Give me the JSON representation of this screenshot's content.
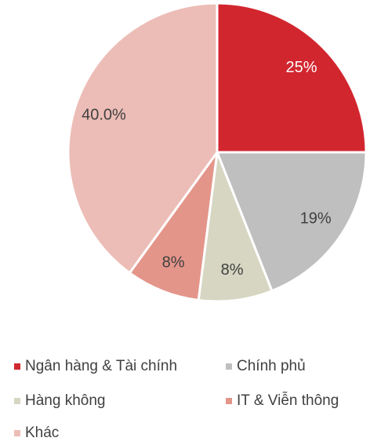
{
  "chart_data": {
    "type": "pie",
    "categories": [
      "Ngân hàng & Tài chính",
      "Chính phủ",
      "Hàng không",
      "IT & Viễn thông",
      "Khác"
    ],
    "values": [
      25,
      19,
      8,
      8,
      40.0
    ],
    "value_labels": [
      "25%",
      "19%",
      "8%",
      "8%",
      "40.0%"
    ],
    "colors": [
      "#d2262f",
      "#bfbfbf",
      "#d6d6c2",
      "#e4958a",
      "#ecbdb6"
    ]
  }
}
